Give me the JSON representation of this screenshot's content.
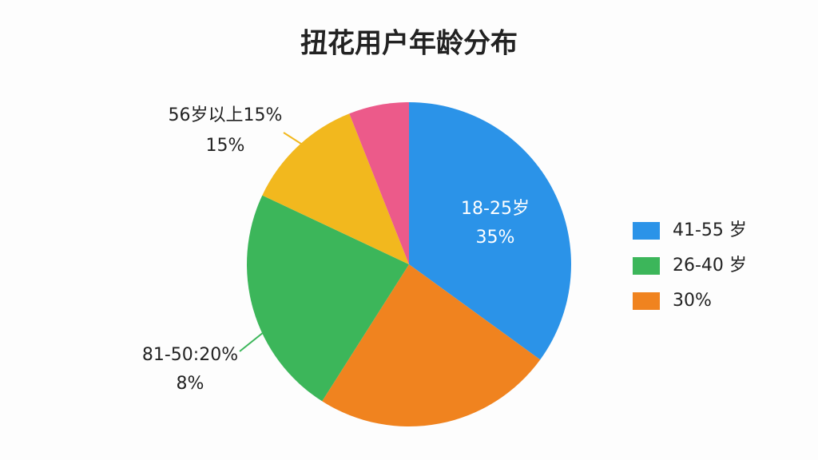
{
  "chart_data": {
    "type": "pie",
    "title": "扭花用户年龄分布",
    "slices": [
      {
        "value": 35,
        "color": "#2b93e8"
      },
      {
        "value": 24,
        "color": "#f0831f"
      },
      {
        "value": 23,
        "color": "#3cb65a"
      },
      {
        "value": 12,
        "color": "#f2b81e"
      },
      {
        "value": 6,
        "color": "#ec5a8a"
      }
    ],
    "annotations": [
      {
        "lines": [
          "18-25岁",
          "35%"
        ]
      },
      {
        "lines": [
          "56岁以上15%",
          "15%"
        ]
      },
      {
        "lines": [
          "81-50:20%",
          "8%"
        ]
      }
    ],
    "legend": [
      {
        "label": "41-55 岁",
        "color": "#2b93e8"
      },
      {
        "label": "26-40 岁",
        "color": "#3cb65a"
      },
      {
        "label": "30%",
        "color": "#f0831f"
      }
    ]
  }
}
